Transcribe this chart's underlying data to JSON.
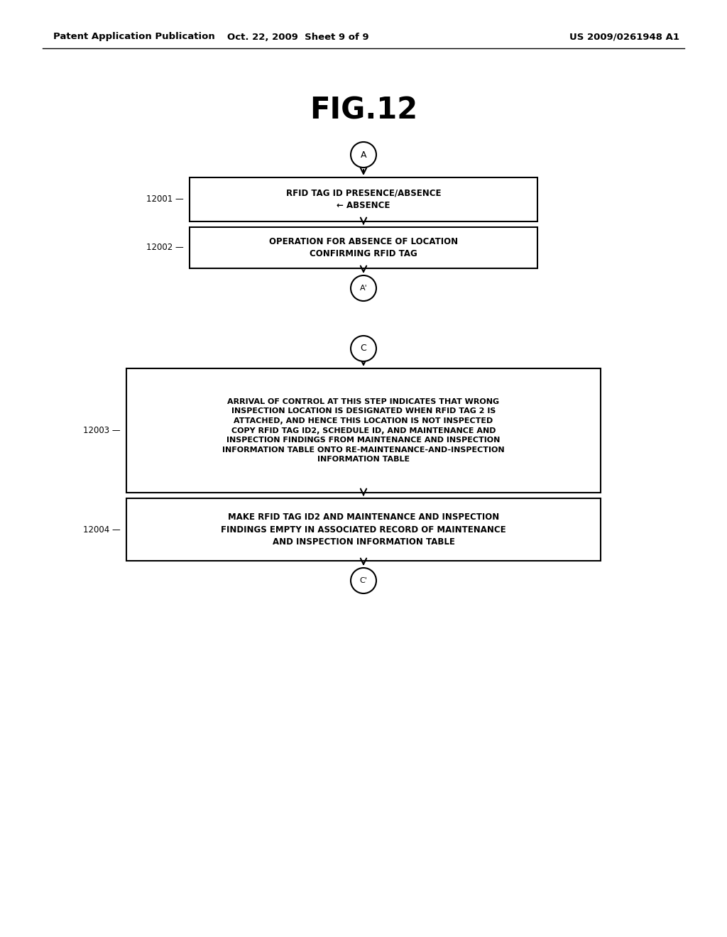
{
  "bg_color": "#ffffff",
  "header_left": "Patent Application Publication",
  "header_mid": "Oct. 22, 2009  Sheet 9 of 9",
  "header_right": "US 2009/0261948 A1",
  "fig_title": "FIG.12",
  "box1_label": "RFID TAG ID PRESENCE/ABSENCE\n← ABSENCE",
  "box1_ref": "12001",
  "box2_label": "OPERATION FOR ABSENCE OF LOCATION\nCONFIRMING RFID TAG",
  "box2_ref": "12002",
  "box3_label": "ARRIVAL OF CONTROL AT THIS STEP INDICATES THAT WRONG\nINSPECTION LOCATION IS DESIGNATED WHEN RFID TAG 2 IS\nATTACHED, AND HENCE THIS LOCATION IS NOT INSPECTED\nCOPY RFID TAG ID2, SCHEDULE ID, AND MAINTENANCE AND\nINSPECTION FINDINGS FROM MAINTENANCE AND INSPECTION\nINFORMATION TABLE ONTO RE-MAINTENANCE-AND-INSPECTION\nINFORMATION TABLE",
  "box3_ref": "12003",
  "box4_label": "MAKE RFID TAG ID2 AND MAINTENANCE AND INSPECTION\nFINDINGS EMPTY IN ASSOCIATED RECORD OF MAINTENANCE\nAND INSPECTION INFORMATION TABLE",
  "box4_ref": "12004",
  "connector_A": "A",
  "connector_Ap": "A'",
  "connector_C": "C",
  "connector_Cp": "C'"
}
